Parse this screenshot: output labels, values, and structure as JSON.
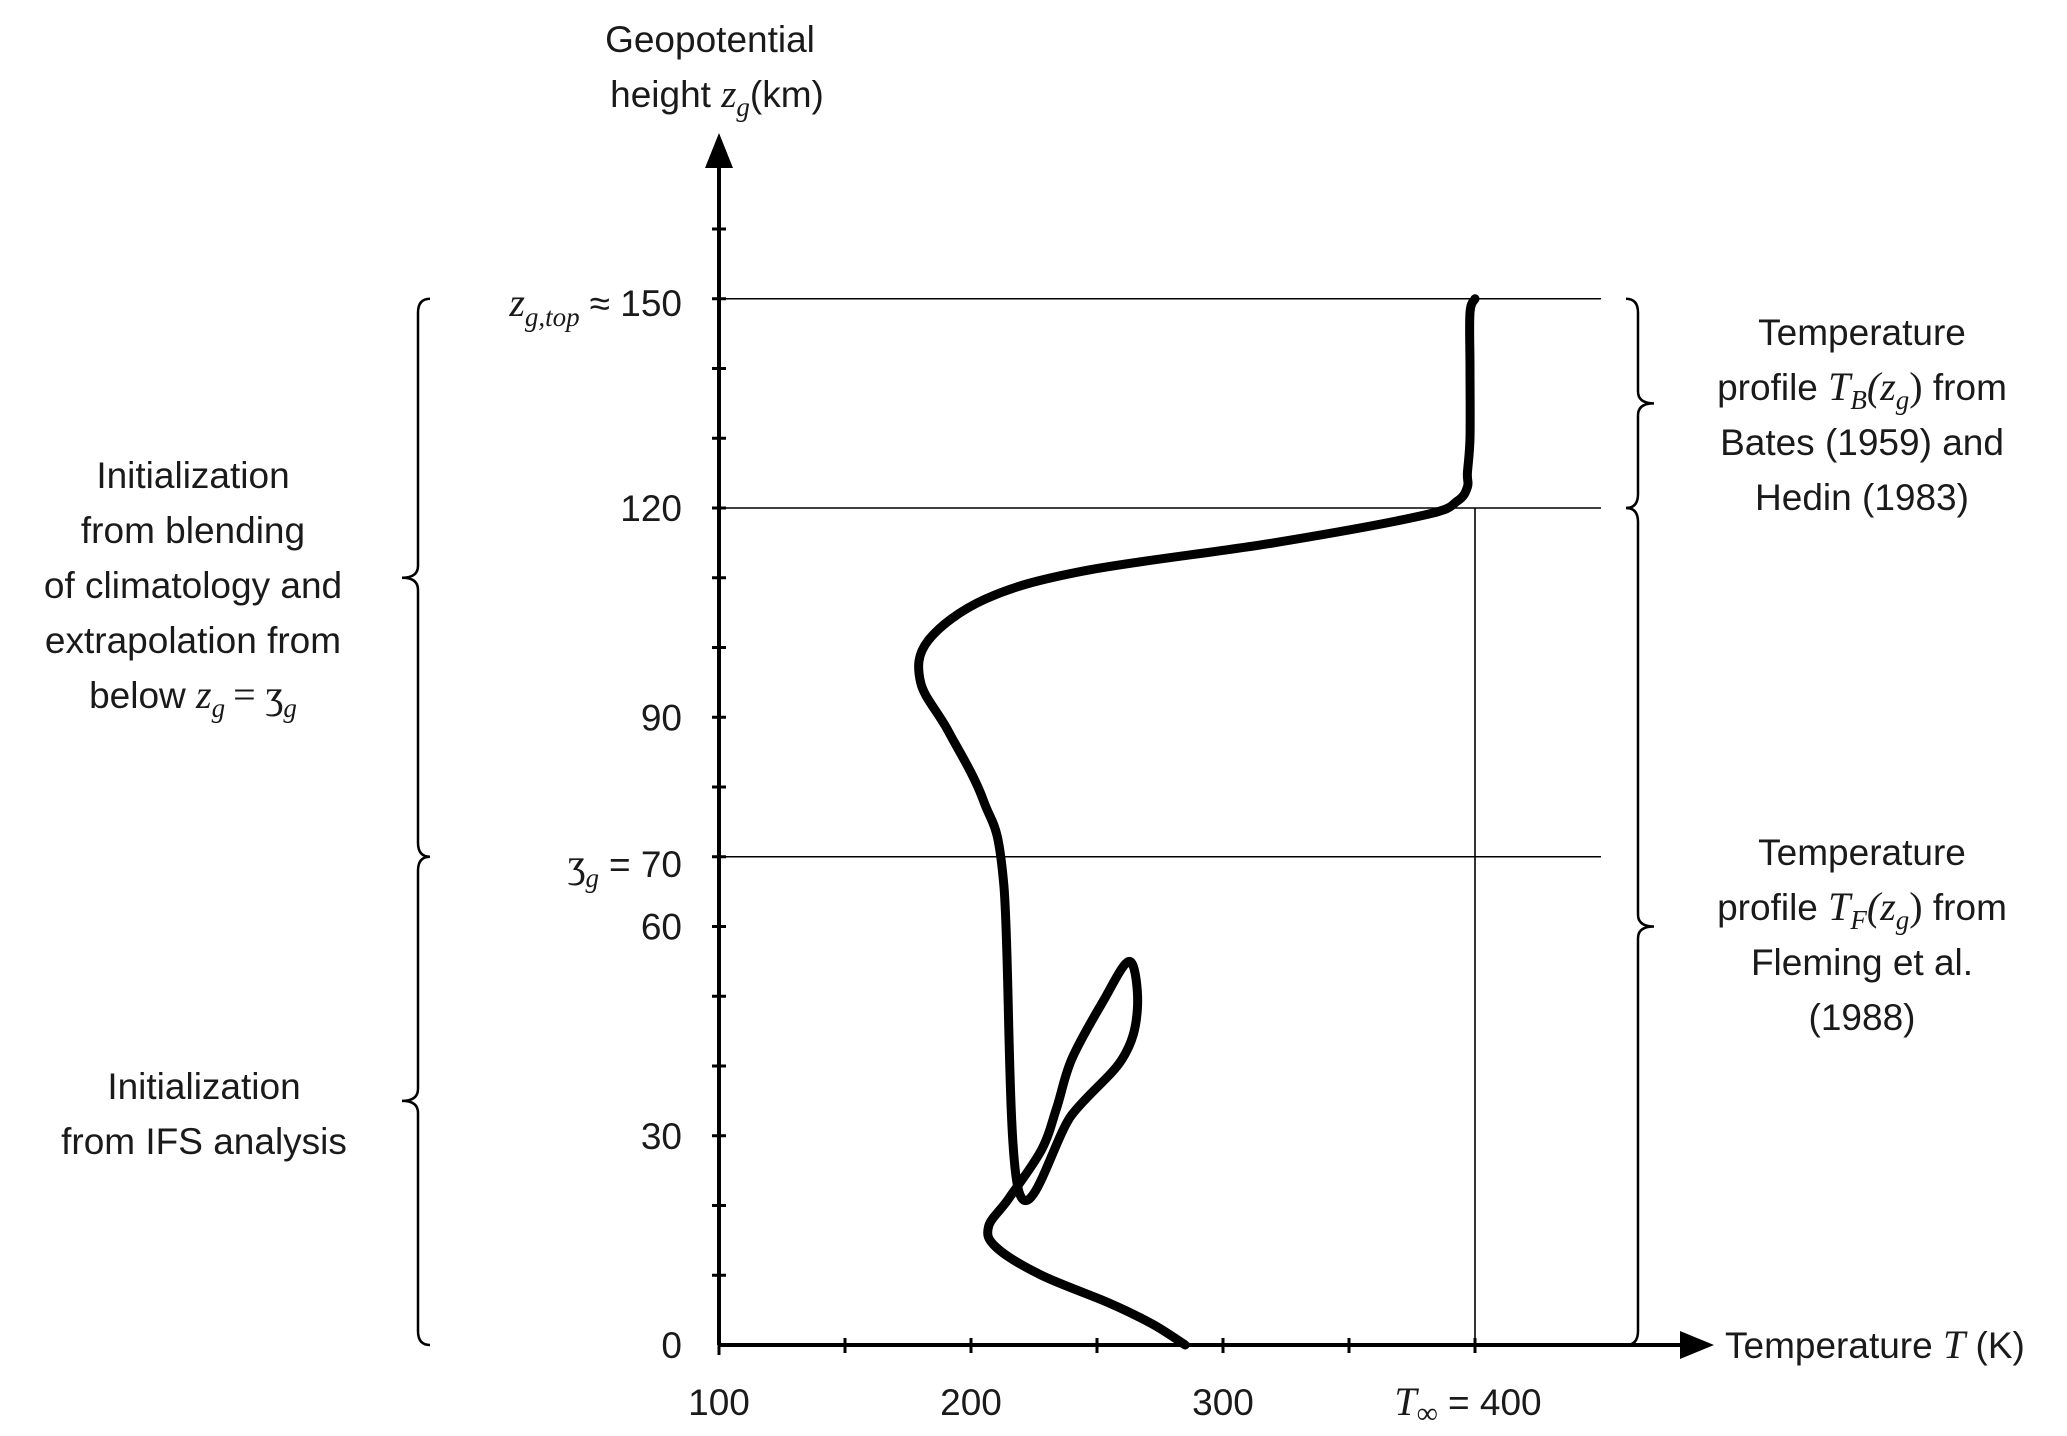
{
  "chart_data": {
    "type": "line",
    "x_axis": {
      "label": "Temperature",
      "label_symbol": "T",
      "label_unit": "(K)",
      "range": [
        100,
        450
      ],
      "ticks": [
        100,
        200,
        300
      ],
      "minor_step": 50,
      "t_inf_label_symbol": "T",
      "t_inf_label_sub": "∞",
      "t_inf_label_value": "= 400",
      "t_inf_value": 400
    },
    "y_axis": {
      "title_line1": "Geopotential",
      "title_line2_text": "height",
      "title_line2_symbol": "z",
      "title_line2_sub": "g",
      "title_line2_unit": "(km)",
      "range": [
        0,
        150
      ],
      "ticks": [
        0,
        30,
        60,
        90,
        120
      ],
      "minor_step": 10,
      "top_label_symbol": "z",
      "top_label_sub": "g,top",
      "top_label_value": "≈ 150",
      "top_value": 150,
      "blend_label_symbol": "ʒ",
      "blend_label_sub": "g",
      "blend_label_value": "= 70",
      "blend_value": 70
    },
    "series": [
      {
        "x": [
          285,
          272,
          255,
          228,
          210,
          207,
          215,
          228,
          234,
          240,
          252,
          263,
          266,
          260,
          240,
          219,
          213,
          205,
          191,
          180,
          183,
          206,
          245,
          320,
          380,
          393,
          397,
          397,
          398,
          398,
          398,
          400
        ],
        "y": [
          0,
          3,
          6,
          10,
          14,
          17,
          21,
          28,
          34,
          41,
          49,
          55,
          48,
          41,
          33,
          22,
          66,
          78,
          88,
          95,
          101,
          107,
          111,
          115,
          119,
          121,
          123,
          125,
          130,
          140,
          148,
          150
        ]
      }
    ],
    "reference_lines_y": [
      150,
      120,
      70
    ],
    "reference_line_x": 400,
    "annotations": {
      "left_upper": {
        "line1": "Initialization",
        "line2": "from blending",
        "line3": "of climatology and",
        "line4": "extrapolation from",
        "line5_text": "below",
        "line5_symbol": "z",
        "line5_sub": "g",
        "line5_eq": "= ʒ",
        "line5_eq_sub": "g"
      },
      "left_lower": {
        "line1": "Initialization",
        "line2": "from IFS analysis"
      },
      "right_upper": {
        "line1": "Temperature",
        "line2_text": "profile",
        "line2_func": "T",
        "line2_func_sub": "B",
        "line2_arg": "(z",
        "line2_arg_sub": "g",
        "line2_close": ")",
        "line2_after": "from",
        "line3": "Bates (1959) and",
        "line4": "Hedin (1983)"
      },
      "right_lower": {
        "line1": "Temperature",
        "line2_text": "profile",
        "line2_func": "T",
        "line2_func_sub": "F",
        "line2_arg": "(z",
        "line2_arg_sub": "g",
        "line2_close": ")",
        "line2_after": "from",
        "line3": "Fleming et al.",
        "line4": "(1988)"
      }
    }
  }
}
